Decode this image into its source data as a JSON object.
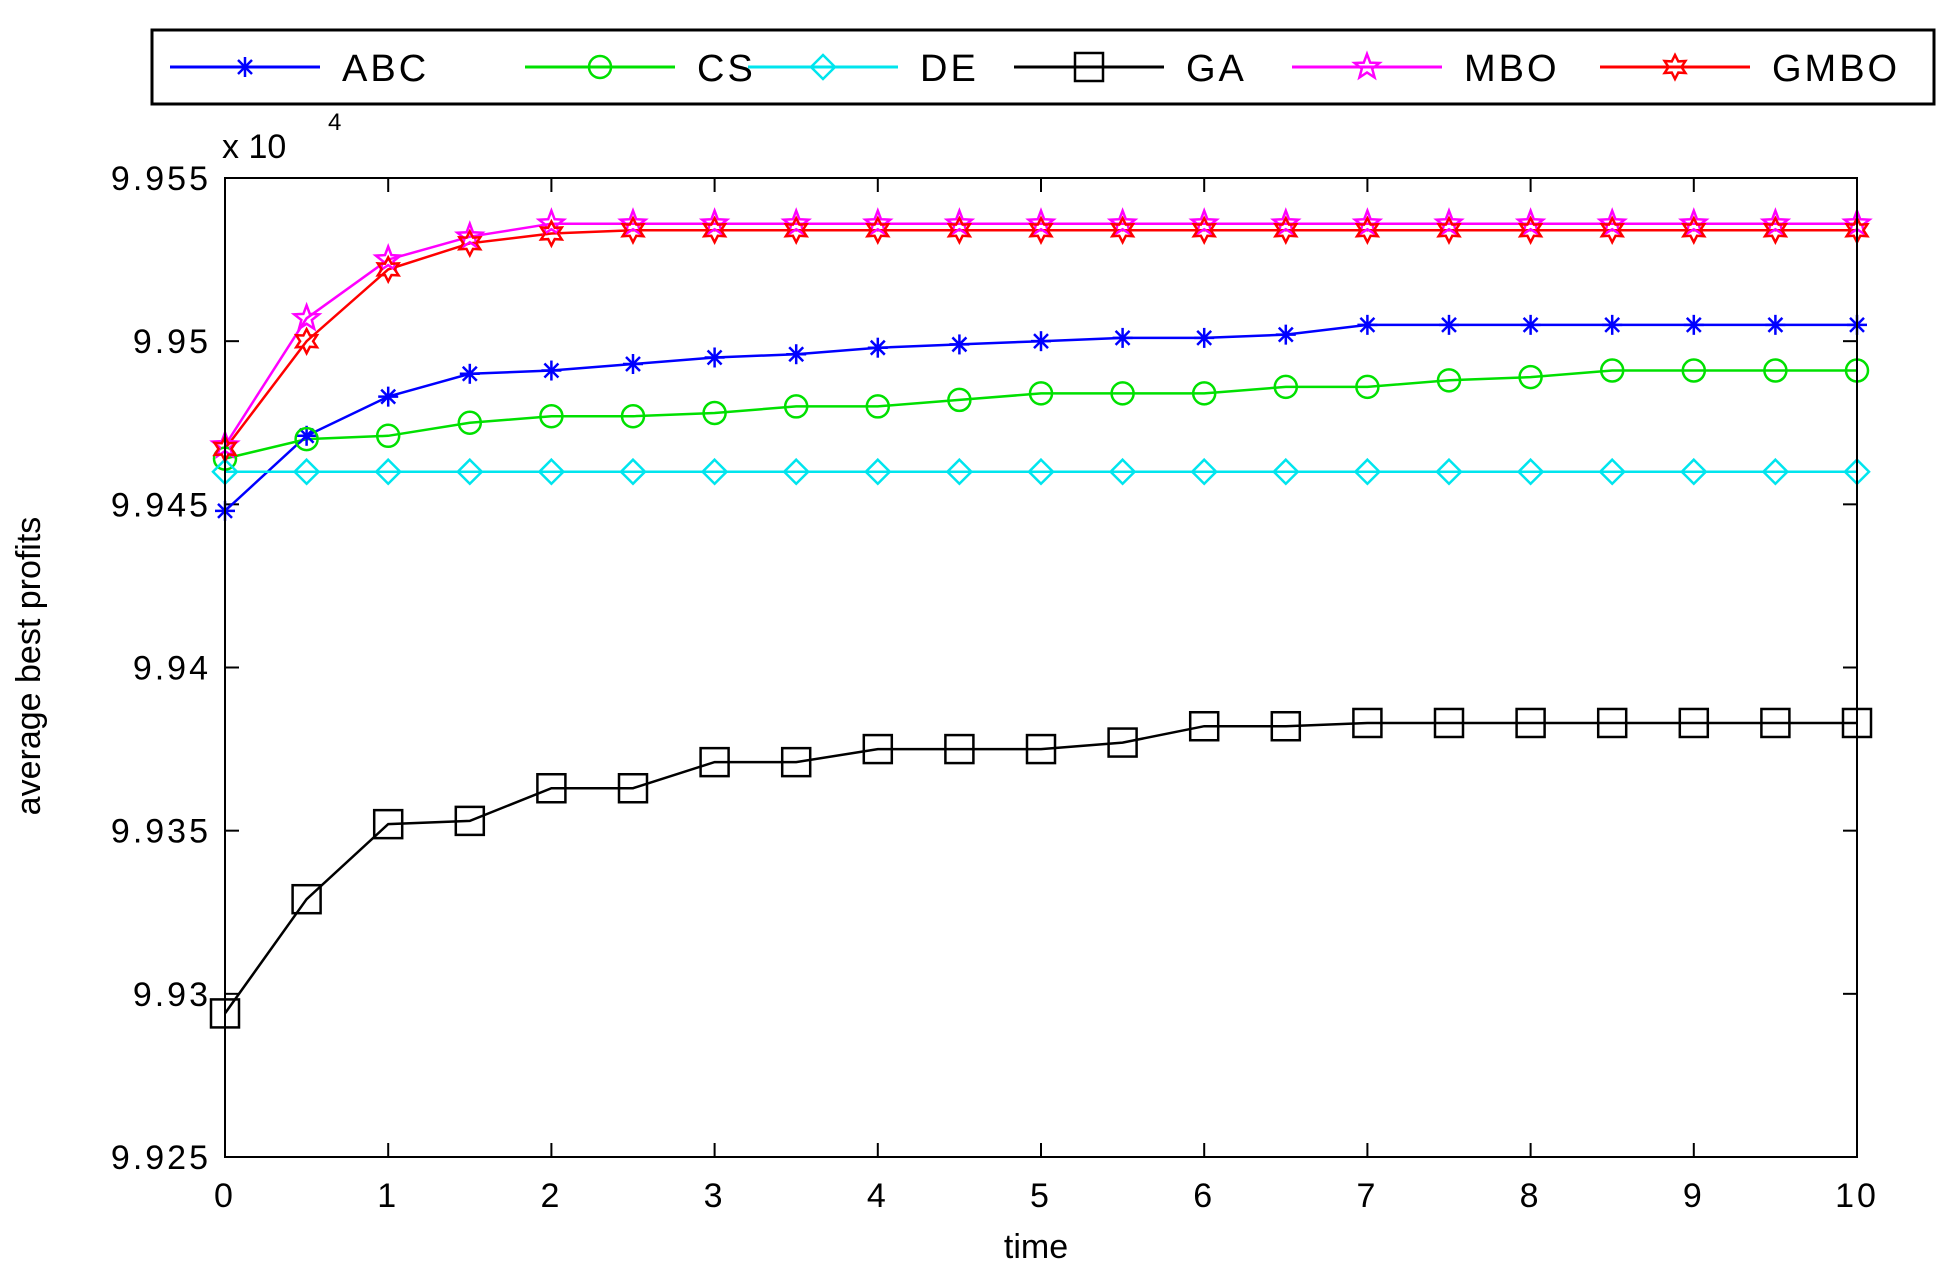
{
  "chart_data": {
    "type": "line",
    "title": "",
    "xlabel": "time",
    "ylabel": "average best profits",
    "y_multiplier_label": "x 10",
    "y_multiplier_exponent": "4",
    "xlim": [
      0,
      10
    ],
    "ylim": [
      9.925,
      9.955
    ],
    "xticks": [
      0,
      1,
      2,
      3,
      4,
      5,
      6,
      7,
      8,
      9,
      10
    ],
    "yticks": [
      9.925,
      9.93,
      9.935,
      9.94,
      9.945,
      9.95,
      9.955
    ],
    "ytick_labels": [
      "9.925",
      "9.93",
      "9.935",
      "9.94",
      "9.945",
      "9.95",
      "9.955"
    ],
    "grid": false,
    "legend_position": "top",
    "x": [
      0,
      0.5,
      1,
      1.5,
      2,
      2.5,
      3,
      3.5,
      4,
      4.5,
      5,
      5.5,
      6,
      6.5,
      7,
      7.5,
      8,
      8.5,
      9,
      9.5,
      10
    ],
    "series": [
      {
        "name": "ABC",
        "color": "#0000ff",
        "marker": "star",
        "values": [
          9.9448,
          9.9471,
          9.9483,
          9.949,
          9.9491,
          9.9493,
          9.9495,
          9.9496,
          9.9498,
          9.9499,
          9.95,
          9.9501,
          9.9501,
          9.9502,
          9.9505,
          9.9505,
          9.9505,
          9.9505,
          9.9505,
          9.9505,
          9.9505
        ]
      },
      {
        "name": "CS",
        "color": "#00e000",
        "marker": "circle",
        "values": [
          9.9464,
          9.947,
          9.9471,
          9.9475,
          9.9477,
          9.9477,
          9.9478,
          9.948,
          9.948,
          9.9482,
          9.9484,
          9.9484,
          9.9484,
          9.9486,
          9.9486,
          9.9488,
          9.9489,
          9.9491,
          9.9491,
          9.9491,
          9.9491
        ]
      },
      {
        "name": "DE",
        "color": "#00e5ee",
        "marker": "diamond",
        "values": [
          9.946,
          9.946,
          9.946,
          9.946,
          9.946,
          9.946,
          9.946,
          9.946,
          9.946,
          9.946,
          9.946,
          9.946,
          9.946,
          9.946,
          9.946,
          9.946,
          9.946,
          9.946,
          9.946,
          9.946,
          9.946
        ]
      },
      {
        "name": "GA",
        "color": "#000000",
        "marker": "square",
        "values": [
          9.9294,
          9.9329,
          9.9352,
          9.9353,
          9.9363,
          9.9363,
          9.9371,
          9.9371,
          9.9375,
          9.9375,
          9.9375,
          9.9377,
          9.9382,
          9.9382,
          9.9383,
          9.9383,
          9.9383,
          9.9383,
          9.9383,
          9.9383,
          9.9383
        ]
      },
      {
        "name": "MBO",
        "color": "#ff00ff",
        "marker": "pentagram",
        "values": [
          9.9468,
          9.9507,
          9.9525,
          9.9532,
          9.9536,
          9.9536,
          9.9536,
          9.9536,
          9.9536,
          9.9536,
          9.9536,
          9.9536,
          9.9536,
          9.9536,
          9.9536,
          9.9536,
          9.9536,
          9.9536,
          9.9536,
          9.9536,
          9.9536
        ]
      },
      {
        "name": "GMBO",
        "color": "#ff0000",
        "marker": "hexagram",
        "values": [
          9.9467,
          9.95,
          9.9522,
          9.953,
          9.9533,
          9.9534,
          9.9534,
          9.9534,
          9.9534,
          9.9534,
          9.9534,
          9.9534,
          9.9534,
          9.9534,
          9.9534,
          9.9534,
          9.9534,
          9.9534,
          9.9534,
          9.9534,
          9.9534
        ]
      }
    ]
  }
}
